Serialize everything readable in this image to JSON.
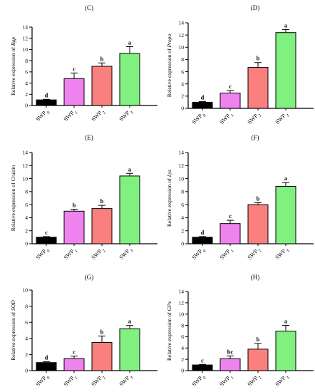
{
  "chart_data": [
    {
      "type": "bar",
      "panel": "(C)",
      "ylabel": "Relative expression of ",
      "ylabel_gene": "Bgp",
      "ylim": [
        0,
        14
      ],
      "yticks": [
        0,
        2,
        4,
        6,
        8,
        10,
        12,
        14
      ],
      "categories": [
        "SWP 0",
        "SWP 1",
        "SWP 2",
        "SWP 3"
      ],
      "values": [
        1.0,
        4.8,
        7.0,
        9.3
      ],
      "errors": [
        0.1,
        1.0,
        0.6,
        1.2
      ],
      "significance": [
        "d",
        "c",
        "b",
        "a"
      ]
    },
    {
      "type": "bar",
      "panel": "(D)",
      "ylabel": "Relative expression of ",
      "ylabel_gene": "Propo",
      "ylim": [
        0,
        14
      ],
      "yticks": [
        0,
        2,
        4,
        6,
        8,
        10,
        12,
        14
      ],
      "categories": [
        "SWP 0",
        "SWP 1",
        "SWP 2",
        "SWP 3"
      ],
      "values": [
        1.0,
        2.5,
        6.7,
        12.4
      ],
      "errors": [
        0.1,
        0.4,
        0.8,
        0.5
      ],
      "significance": [
        "d",
        "c",
        "b",
        "a"
      ]
    },
    {
      "type": "bar",
      "panel": "(E)",
      "ylabel": "Relative expression of ",
      "ylabel_gene": "Crustin",
      "ylim": [
        0,
        14
      ],
      "yticks": [
        0,
        2,
        4,
        6,
        8,
        10,
        12,
        14
      ],
      "categories": [
        "SWP 0",
        "SWP 1",
        "SWP 2",
        "SWP 3"
      ],
      "values": [
        1.0,
        5.0,
        5.4,
        10.4
      ],
      "errors": [
        0.1,
        0.3,
        0.5,
        0.4
      ],
      "significance": [
        "c",
        "b",
        "b",
        "a"
      ]
    },
    {
      "type": "bar",
      "panel": "(F)",
      "ylabel": "Relative expression of ",
      "ylabel_gene": "Lys",
      "ylim": [
        0,
        14
      ],
      "yticks": [
        0,
        2,
        4,
        6,
        8,
        10,
        12,
        14
      ],
      "categories": [
        "SWP 0",
        "SWP 1",
        "SWP 2",
        "SWP 3"
      ],
      "values": [
        1.0,
        3.1,
        6.0,
        8.8
      ],
      "errors": [
        0.1,
        0.5,
        0.3,
        0.6
      ],
      "significance": [
        "d",
        "c",
        "b",
        "a"
      ]
    },
    {
      "type": "bar",
      "panel": "(G)",
      "ylabel": "Relative expression of ",
      "ylabel_gene": "SOD",
      "ylim": [
        0,
        10
      ],
      "yticks": [
        0,
        2,
        4,
        6,
        8,
        10
      ],
      "categories": [
        "SWP 0",
        "SWP 1",
        "SWP 2",
        "SWP 3"
      ],
      "values": [
        1.0,
        1.5,
        3.5,
        5.2
      ],
      "errors": [
        0.1,
        0.3,
        0.8,
        0.4
      ],
      "significance": [
        "d",
        "c",
        "b",
        "a"
      ]
    },
    {
      "type": "bar",
      "panel": "(H)",
      "ylabel": "Relative expression of ",
      "ylabel_gene": "GPx",
      "ylim": [
        0,
        14
      ],
      "yticks": [
        0,
        2,
        4,
        6,
        8,
        10,
        12,
        14
      ],
      "categories": [
        "SWP 0",
        "SWP 1",
        "SWP 2",
        "SWP 3"
      ],
      "values": [
        1.0,
        2.1,
        3.8,
        7.0
      ],
      "errors": [
        0.1,
        0.5,
        1.0,
        1.0
      ],
      "significance": [
        "c",
        "bc",
        "b",
        "a"
      ]
    }
  ],
  "colors": {
    "bars": [
      "#000000",
      "#ee82ee",
      "#fa8080",
      "#80f080"
    ],
    "axis": "#000000"
  }
}
